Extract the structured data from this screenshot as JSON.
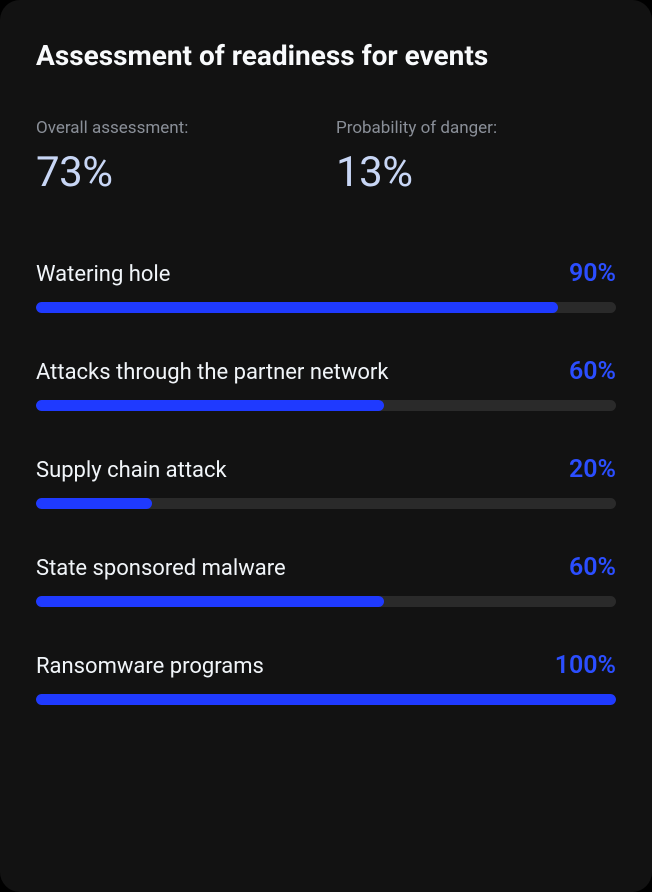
{
  "title": "Assessment of readiness for events",
  "colors": {
    "card_background": "#121212",
    "title_text": "#f8fafc",
    "muted_text": "#8a8f98",
    "metric_value": "#c8d6f5",
    "bar_label": "#f1f5f9",
    "bar_value": "#2b4eff",
    "bar_fill": "#1f3aff",
    "bar_track": "#2a2a2a"
  },
  "typography": {
    "title_fontsize": 28,
    "metric_label_fontsize": 17,
    "metric_value_fontsize": 42,
    "bar_label_fontsize": 22,
    "bar_value_fontsize": 25
  },
  "metrics": [
    {
      "label": "Overall assessment:",
      "value": "73%"
    },
    {
      "label": "Probability of danger:",
      "value": "13%"
    }
  ],
  "bar_chart": {
    "type": "bar",
    "orientation": "horizontal",
    "range": [
      0,
      100
    ],
    "track_height": 11,
    "track_radius": 6,
    "track_color": "#2a2a2a",
    "fill_color": "#1f3aff",
    "value_color": "#2b4eff",
    "items": [
      {
        "label": "Watering hole",
        "percent": 90,
        "display": "90%"
      },
      {
        "label": "Attacks through the partner network",
        "percent": 60,
        "display": "60%"
      },
      {
        "label": "Supply chain attack",
        "percent": 20,
        "display": "20%"
      },
      {
        "label": "State sponsored malware",
        "percent": 60,
        "display": "60%"
      },
      {
        "label": "Ransomware programs",
        "percent": 100,
        "display": "100%"
      }
    ]
  }
}
